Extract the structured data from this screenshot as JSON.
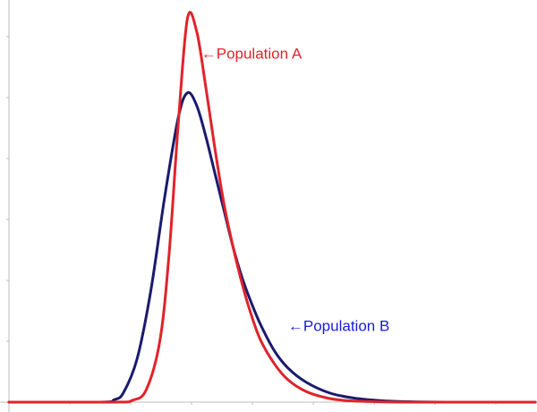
{
  "chart_data": {
    "type": "line",
    "title": "",
    "xlabel": "",
    "ylabel": "",
    "xlim": [
      -1.5,
      10
    ],
    "ylim": [
      0,
      0.65
    ],
    "grid": false,
    "legend": "none",
    "series": [
      {
        "name": "Population A",
        "color": "#e0232b",
        "x": [
          -1.5,
          0.8,
          1.2,
          1.5,
          1.8,
          2.0,
          2.2,
          2.4,
          2.6,
          2.8,
          3.0,
          3.2,
          3.4,
          3.6,
          3.8,
          4.0,
          4.3,
          4.6,
          5.0,
          5.5,
          6.0,
          7.0,
          8.0,
          10.0
        ],
        "y": [
          0.0,
          0.0,
          0.003,
          0.02,
          0.1,
          0.24,
          0.45,
          0.62,
          0.6,
          0.51,
          0.41,
          0.32,
          0.25,
          0.19,
          0.14,
          0.1,
          0.062,
          0.036,
          0.017,
          0.006,
          0.002,
          0.0,
          0.0,
          0.0
        ]
      },
      {
        "name": "Population B",
        "color": "#1a1a6e",
        "x": [
          -1.5,
          0.5,
          0.8,
          1.0,
          1.3,
          1.6,
          1.9,
          2.2,
          2.4,
          2.6,
          2.8,
          3.0,
          3.2,
          3.4,
          3.6,
          3.8,
          4.0,
          4.3,
          4.6,
          5.0,
          5.5,
          6.0,
          6.5,
          7.0,
          8.0,
          10.0
        ],
        "y": [
          0.0,
          0.0,
          0.004,
          0.015,
          0.07,
          0.18,
          0.33,
          0.46,
          0.5,
          0.48,
          0.43,
          0.37,
          0.31,
          0.25,
          0.2,
          0.16,
          0.125,
          0.083,
          0.055,
          0.032,
          0.015,
          0.007,
          0.003,
          0.001,
          0.0,
          0.0
        ]
      }
    ],
    "annotations": [
      {
        "text": "←Population A",
        "x": 2.7,
        "y": 0.555,
        "color": "#e0232b"
      },
      {
        "text": "←Population B",
        "x": 4.6,
        "y": 0.115,
        "color": "#1a1ae0"
      }
    ]
  }
}
